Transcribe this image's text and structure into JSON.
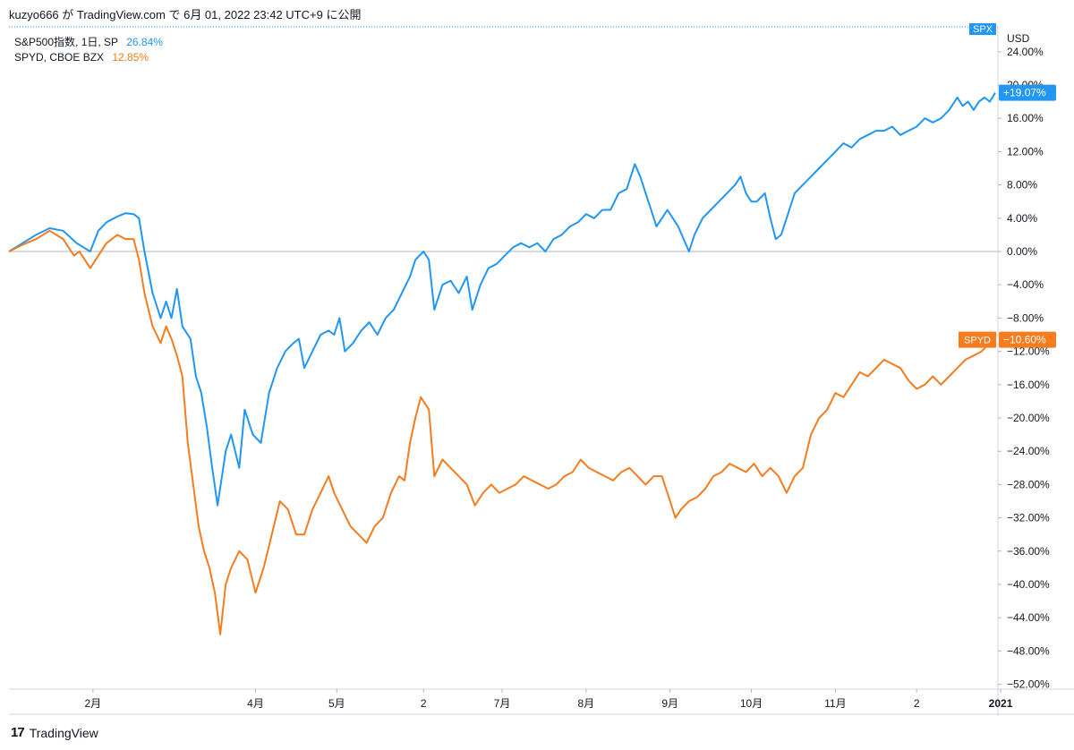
{
  "header": {
    "publish_line": "kuzyo666 が TradingView.com で 6月 01, 2022 23:42 UTC+9 に公開"
  },
  "legend": [
    {
      "name": "S&P500指数, 1日, SP",
      "value": "26.84%",
      "color": "#2196f3"
    },
    {
      "name": "SPYD, CBOE BZX",
      "value": "12.85%",
      "color": "#f57c1f"
    }
  ],
  "axis_labels": {
    "currency": "USD",
    "spx_tag": "SPX",
    "spx_last": "+19.07%",
    "spyd_tag": "SPYD",
    "spyd_last": "−10.60%"
  },
  "footer": {
    "brand": "TradingView",
    "logo_glyph": "17"
  },
  "chart_data": {
    "type": "line",
    "title": "",
    "xlabel": "",
    "ylabel": "USD",
    "ylim": [
      -53,
      27
    ],
    "yticks": [
      24,
      20,
      16,
      12,
      8,
      4,
      0,
      -4,
      -8,
      -12,
      -16,
      -20,
      -24,
      -28,
      -32,
      -36,
      -40,
      -44,
      -48,
      -52
    ],
    "ytick_labels": [
      "24.00%",
      "20.00%",
      "16.00%",
      "12.00%",
      "8.00%",
      "4.00%",
      "0.00%",
      "−4.00%",
      "−8.00%",
      "−12.00%",
      "−16.00%",
      "−20.00%",
      "−24.00%",
      "−28.00%",
      "−32.00%",
      "−36.00%",
      "−40.00%",
      "−44.00%",
      "−48.00%",
      "−52.00%"
    ],
    "x_range_days": [
      0,
      365
    ],
    "xticks": [
      {
        "day": 31,
        "label": "2月"
      },
      {
        "day": 91,
        "label": "4月"
      },
      {
        "day": 121,
        "label": "5月"
      },
      {
        "day": 153,
        "label": "2"
      },
      {
        "day": 182,
        "label": "7月"
      },
      {
        "day": 213,
        "label": "8月"
      },
      {
        "day": 244,
        "label": "9月"
      },
      {
        "day": 274,
        "label": "10月"
      },
      {
        "day": 305,
        "label": "11月"
      },
      {
        "day": 335,
        "label": "2"
      },
      {
        "day": 366,
        "label": "2021",
        "bold": true
      }
    ],
    "series": [
      {
        "name": "SPX",
        "color": "#2196f3",
        "points": [
          [
            0,
            0
          ],
          [
            5,
            1
          ],
          [
            10,
            2
          ],
          [
            15,
            2.8
          ],
          [
            20,
            2.5
          ],
          [
            25,
            1
          ],
          [
            30,
            0
          ],
          [
            33,
            2.5
          ],
          [
            36,
            3.5
          ],
          [
            40,
            4.2
          ],
          [
            43,
            4.6
          ],
          [
            46,
            4.5
          ],
          [
            48,
            4
          ],
          [
            50,
            0
          ],
          [
            53,
            -5
          ],
          [
            56,
            -8
          ],
          [
            58,
            -6
          ],
          [
            60,
            -8
          ],
          [
            62,
            -4.5
          ],
          [
            64,
            -9
          ],
          [
            67,
            -10.5
          ],
          [
            69,
            -15
          ],
          [
            71,
            -17
          ],
          [
            73,
            -21
          ],
          [
            75,
            -26
          ],
          [
            77,
            -30.5
          ],
          [
            80,
            -24
          ],
          [
            82,
            -22
          ],
          [
            85,
            -26
          ],
          [
            87,
            -19
          ],
          [
            90,
            -22
          ],
          [
            93,
            -23
          ],
          [
            96,
            -17
          ],
          [
            99,
            -14
          ],
          [
            102,
            -12
          ],
          [
            105,
            -11
          ],
          [
            107,
            -10.5
          ],
          [
            109,
            -14
          ],
          [
            112,
            -12
          ],
          [
            115,
            -10
          ],
          [
            118,
            -9.5
          ],
          [
            120,
            -10
          ],
          [
            122,
            -8
          ],
          [
            124,
            -12
          ],
          [
            127,
            -11
          ],
          [
            130,
            -9.5
          ],
          [
            133,
            -8.5
          ],
          [
            136,
            -10
          ],
          [
            139,
            -8
          ],
          [
            142,
            -7
          ],
          [
            145,
            -5
          ],
          [
            148,
            -3
          ],
          [
            150,
            -1
          ],
          [
            153,
            0
          ],
          [
            155,
            -1
          ],
          [
            157,
            -7
          ],
          [
            160,
            -4
          ],
          [
            163,
            -3.5
          ],
          [
            166,
            -5
          ],
          [
            169,
            -3
          ],
          [
            171,
            -7
          ],
          [
            174,
            -4
          ],
          [
            177,
            -2
          ],
          [
            180,
            -1.5
          ],
          [
            183,
            -0.5
          ],
          [
            186,
            0.5
          ],
          [
            189,
            1
          ],
          [
            192,
            0.5
          ],
          [
            195,
            1
          ],
          [
            198,
            0
          ],
          [
            201,
            1.5
          ],
          [
            204,
            2
          ],
          [
            207,
            3
          ],
          [
            210,
            3.5
          ],
          [
            213,
            4.5
          ],
          [
            216,
            4
          ],
          [
            219,
            5
          ],
          [
            222,
            5
          ],
          [
            225,
            7
          ],
          [
            228,
            7.5
          ],
          [
            231,
            10.5
          ],
          [
            233,
            9
          ],
          [
            235,
            7
          ],
          [
            237,
            5
          ],
          [
            239,
            3
          ],
          [
            241,
            4
          ],
          [
            243,
            5
          ],
          [
            245,
            4
          ],
          [
            247,
            3
          ],
          [
            249,
            1.5
          ],
          [
            251,
            0
          ],
          [
            253,
            2
          ],
          [
            256,
            4
          ],
          [
            259,
            5
          ],
          [
            262,
            6
          ],
          [
            265,
            7
          ],
          [
            268,
            8
          ],
          [
            270,
            9
          ],
          [
            272,
            7
          ],
          [
            274,
            6
          ],
          [
            276,
            6
          ],
          [
            279,
            7
          ],
          [
            281,
            4
          ],
          [
            283,
            1.5
          ],
          [
            285,
            2
          ],
          [
            287,
            4
          ],
          [
            290,
            7
          ],
          [
            293,
            8
          ],
          [
            296,
            9
          ],
          [
            299,
            10
          ],
          [
            302,
            11
          ],
          [
            305,
            12
          ],
          [
            308,
            13
          ],
          [
            311,
            12.5
          ],
          [
            314,
            13.5
          ],
          [
            317,
            14
          ],
          [
            320,
            14.5
          ],
          [
            323,
            14.5
          ],
          [
            326,
            15
          ],
          [
            329,
            14
          ],
          [
            332,
            14.5
          ],
          [
            335,
            15
          ],
          [
            338,
            16
          ],
          [
            341,
            15.5
          ],
          [
            344,
            16
          ],
          [
            347,
            17
          ],
          [
            350,
            18.5
          ],
          [
            352,
            17.5
          ],
          [
            354,
            18
          ],
          [
            356,
            17
          ],
          [
            358,
            18
          ],
          [
            360,
            18.5
          ],
          [
            362,
            18
          ],
          [
            364,
            19.07
          ]
        ]
      },
      {
        "name": "SPYD",
        "color": "#f57c1f",
        "points": [
          [
            0,
            0
          ],
          [
            5,
            0.8
          ],
          [
            10,
            1.5
          ],
          [
            15,
            2.5
          ],
          [
            20,
            1.5
          ],
          [
            24,
            -0.5
          ],
          [
            26,
            0
          ],
          [
            28,
            -1
          ],
          [
            30,
            -2
          ],
          [
            33,
            -0.5
          ],
          [
            36,
            1
          ],
          [
            40,
            2
          ],
          [
            43,
            1.5
          ],
          [
            46,
            1.5
          ],
          [
            48,
            -1
          ],
          [
            50,
            -5
          ],
          [
            53,
            -9
          ],
          [
            56,
            -11
          ],
          [
            58,
            -9
          ],
          [
            60,
            -10.5
          ],
          [
            62,
            -12.5
          ],
          [
            64,
            -15
          ],
          [
            66,
            -23
          ],
          [
            68,
            -28
          ],
          [
            70,
            -33
          ],
          [
            72,
            -36
          ],
          [
            74,
            -38
          ],
          [
            76,
            -41
          ],
          [
            78,
            -46
          ],
          [
            80,
            -40
          ],
          [
            82,
            -38
          ],
          [
            85,
            -36
          ],
          [
            88,
            -37
          ],
          [
            91,
            -41
          ],
          [
            94,
            -38
          ],
          [
            97,
            -34
          ],
          [
            100,
            -30
          ],
          [
            103,
            -31
          ],
          [
            106,
            -34
          ],
          [
            109,
            -34
          ],
          [
            112,
            -31
          ],
          [
            115,
            -29
          ],
          [
            118,
            -27
          ],
          [
            120,
            -29
          ],
          [
            123,
            -31
          ],
          [
            126,
            -33
          ],
          [
            129,
            -34
          ],
          [
            132,
            -35
          ],
          [
            135,
            -33
          ],
          [
            138,
            -32
          ],
          [
            141,
            -29
          ],
          [
            144,
            -27
          ],
          [
            146,
            -27.5
          ],
          [
            148,
            -23
          ],
          [
            150,
            -20
          ],
          [
            152,
            -17.5
          ],
          [
            155,
            -19
          ],
          [
            157,
            -27
          ],
          [
            160,
            -25
          ],
          [
            163,
            -26
          ],
          [
            166,
            -27
          ],
          [
            169,
            -28
          ],
          [
            172,
            -30.5
          ],
          [
            175,
            -29
          ],
          [
            178,
            -28
          ],
          [
            181,
            -29
          ],
          [
            184,
            -28.5
          ],
          [
            187,
            -28
          ],
          [
            190,
            -27
          ],
          [
            193,
            -27.5
          ],
          [
            196,
            -28
          ],
          [
            199,
            -28.5
          ],
          [
            202,
            -28
          ],
          [
            205,
            -27
          ],
          [
            208,
            -26.5
          ],
          [
            211,
            -25
          ],
          [
            214,
            -26
          ],
          [
            217,
            -26.5
          ],
          [
            220,
            -27
          ],
          [
            223,
            -27.5
          ],
          [
            226,
            -26.5
          ],
          [
            229,
            -26
          ],
          [
            232,
            -27
          ],
          [
            235,
            -28
          ],
          [
            238,
            -27
          ],
          [
            241,
            -27
          ],
          [
            244,
            -30
          ],
          [
            246,
            -32
          ],
          [
            248,
            -31
          ],
          [
            251,
            -30
          ],
          [
            254,
            -29.5
          ],
          [
            257,
            -28.5
          ],
          [
            260,
            -27
          ],
          [
            263,
            -26.5
          ],
          [
            266,
            -25.5
          ],
          [
            269,
            -26
          ],
          [
            272,
            -26.5
          ],
          [
            275,
            -25.5
          ],
          [
            278,
            -27
          ],
          [
            281,
            -26
          ],
          [
            284,
            -27
          ],
          [
            287,
            -29
          ],
          [
            290,
            -27
          ],
          [
            293,
            -26
          ],
          [
            296,
            -22
          ],
          [
            299,
            -20
          ],
          [
            302,
            -19
          ],
          [
            305,
            -17
          ],
          [
            308,
            -17.5
          ],
          [
            311,
            -16
          ],
          [
            314,
            -14.5
          ],
          [
            317,
            -15
          ],
          [
            320,
            -14
          ],
          [
            323,
            -13
          ],
          [
            326,
            -13.5
          ],
          [
            329,
            -14
          ],
          [
            332,
            -15.5
          ],
          [
            335,
            -16.5
          ],
          [
            338,
            -16
          ],
          [
            341,
            -15
          ],
          [
            344,
            -16
          ],
          [
            347,
            -15
          ],
          [
            350,
            -14
          ],
          [
            353,
            -13
          ],
          [
            356,
            -12.5
          ],
          [
            359,
            -12
          ],
          [
            362,
            -11
          ],
          [
            364,
            -10.6
          ]
        ]
      }
    ]
  }
}
